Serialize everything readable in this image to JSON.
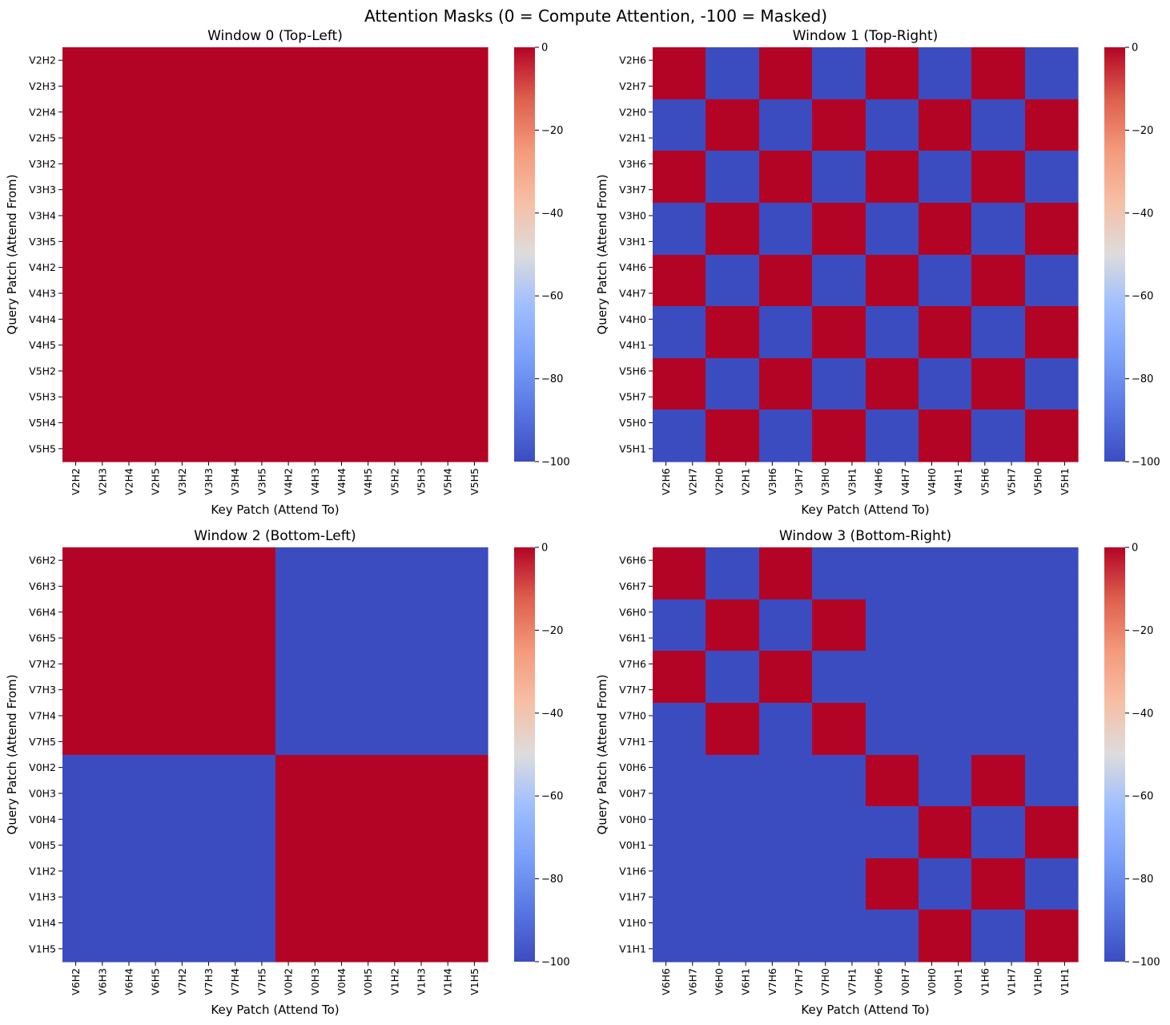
{
  "figure": {
    "suptitle": "Attention Masks (0 = Compute Attention, -100 = Masked)"
  },
  "colors": {
    "cmap": "coolwarm",
    "masked": "#3b4cc0",
    "attend": "#b40426"
  },
  "chart_data": [
    {
      "type": "heatmap",
      "title": "Window 0 (Top-Left)",
      "xlabel": "Key Patch (Attend To)",
      "ylabel": "Query Patch (Attend From)",
      "x_labels": [
        "V2H2",
        "V2H3",
        "V2H4",
        "V2H5",
        "V3H2",
        "V3H3",
        "V3H4",
        "V3H5",
        "V4H2",
        "V4H3",
        "V4H4",
        "V4H5",
        "V5H2",
        "V5H3",
        "V5H4",
        "V5H5"
      ],
      "y_labels": [
        "V2H2",
        "V2H3",
        "V2H4",
        "V2H5",
        "V3H2",
        "V3H3",
        "V3H4",
        "V3H5",
        "V4H2",
        "V4H3",
        "V4H4",
        "V4H5",
        "V5H2",
        "V5H3",
        "V5H4",
        "V5H5"
      ],
      "pattern": "all_attend",
      "colorbar": {
        "vmin": -100,
        "vmax": 0,
        "ticks": [
          0,
          -20,
          -40,
          -60,
          -80,
          -100
        ],
        "tick_labels": [
          "0",
          "−20",
          "−40",
          "−60",
          "−80",
          "−100"
        ]
      }
    },
    {
      "type": "heatmap",
      "title": "Window 1 (Top-Right)",
      "xlabel": "Key Patch (Attend To)",
      "ylabel": "Query Patch (Attend From)",
      "x_labels": [
        "V2H6",
        "V2H7",
        "V2H0",
        "V2H1",
        "V3H6",
        "V3H7",
        "V3H0",
        "V3H1",
        "V4H6",
        "V4H7",
        "V4H0",
        "V4H1",
        "V5H6",
        "V5H7",
        "V5H0",
        "V5H1"
      ],
      "y_labels": [
        "V2H6",
        "V2H7",
        "V2H0",
        "V2H1",
        "V3H6",
        "V3H7",
        "V3H0",
        "V3H1",
        "V4H6",
        "V4H7",
        "V4H0",
        "V4H1",
        "V5H6",
        "V5H7",
        "V5H0",
        "V5H1"
      ],
      "pattern": "same_horizontal_group",
      "colorbar": {
        "vmin": -100,
        "vmax": 0,
        "ticks": [
          0,
          -20,
          -40,
          -60,
          -80,
          -100
        ],
        "tick_labels": [
          "0",
          "−20",
          "−40",
          "−60",
          "−80",
          "−100"
        ]
      }
    },
    {
      "type": "heatmap",
      "title": "Window 2 (Bottom-Left)",
      "xlabel": "Key Patch (Attend To)",
      "ylabel": "Query Patch (Attend From)",
      "x_labels": [
        "V6H2",
        "V6H3",
        "V6H4",
        "V6H5",
        "V7H2",
        "V7H3",
        "V7H4",
        "V7H5",
        "V0H2",
        "V0H3",
        "V0H4",
        "V0H5",
        "V1H2",
        "V1H3",
        "V1H4",
        "V1H5"
      ],
      "y_labels": [
        "V6H2",
        "V6H3",
        "V6H4",
        "V6H5",
        "V7H2",
        "V7H3",
        "V7H4",
        "V7H5",
        "V0H2",
        "V0H3",
        "V0H4",
        "V0H5",
        "V1H2",
        "V1H3",
        "V1H4",
        "V1H5"
      ],
      "pattern": "same_vertical_group",
      "colorbar": {
        "vmin": -100,
        "vmax": 0,
        "ticks": [
          0,
          -20,
          -40,
          -60,
          -80,
          -100
        ],
        "tick_labels": [
          "0",
          "−20",
          "−40",
          "−60",
          "−80",
          "−100"
        ]
      }
    },
    {
      "type": "heatmap",
      "title": "Window 3 (Bottom-Right)",
      "xlabel": "Key Patch (Attend To)",
      "ylabel": "Query Patch (Attend From)",
      "x_labels": [
        "V6H6",
        "V6H7",
        "V6H0",
        "V6H1",
        "V7H6",
        "V7H7",
        "V7H0",
        "V7H1",
        "V0H6",
        "V0H7",
        "V0H0",
        "V0H1",
        "V1H6",
        "V1H7",
        "V1H0",
        "V1H1"
      ],
      "y_labels": [
        "V6H6",
        "V6H7",
        "V6H0",
        "V6H1",
        "V7H6",
        "V7H7",
        "V7H0",
        "V7H1",
        "V0H6",
        "V0H7",
        "V0H0",
        "V0H1",
        "V1H6",
        "V1H7",
        "V1H0",
        "V1H1"
      ],
      "pattern": "same_vertical_and_horizontal_group",
      "colorbar": {
        "vmin": -100,
        "vmax": 0,
        "ticks": [
          0,
          -20,
          -40,
          -60,
          -80,
          -100
        ],
        "tick_labels": [
          "0",
          "−20",
          "−40",
          "−60",
          "−80",
          "−100"
        ]
      }
    }
  ]
}
